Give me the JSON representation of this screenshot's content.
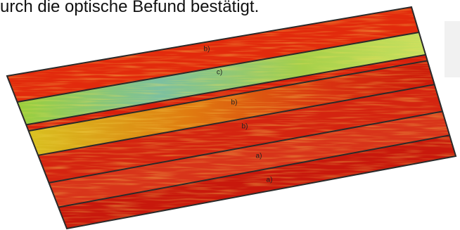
{
  "document": {
    "text": "urch die optische Befund bestätigt.",
    "figure": {
      "labels": [
        "b)",
        "c)",
        "b)",
        "b)",
        "a)",
        "a)"
      ]
    }
  }
}
